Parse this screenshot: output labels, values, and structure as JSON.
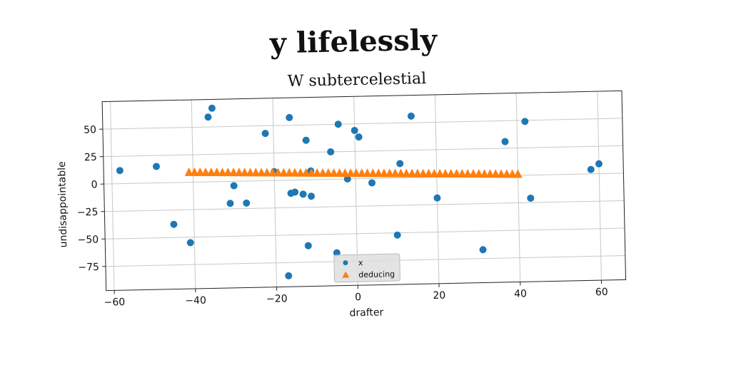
{
  "chart_data": {
    "type": "scatter",
    "suptitle": "y lifelessly",
    "title": "W subtercelestial",
    "xlabel": "drafter",
    "ylabel": "undisappointable",
    "xlim": [
      -62,
      66
    ],
    "ylim": [
      -97,
      75
    ],
    "xticks": [
      -60,
      -40,
      -20,
      0,
      20,
      40,
      60
    ],
    "yticks": [
      -75,
      -50,
      -25,
      0,
      25,
      50
    ],
    "xtick_labels": [
      "−60",
      "−40",
      "−20",
      "0",
      "20",
      "40",
      "60"
    ],
    "ytick_labels": [
      "−75",
      "−50",
      "−25",
      "0",
      "25",
      "50"
    ],
    "grid": true,
    "legend_position": "bottom-center",
    "series": [
      {
        "name": "x",
        "marker": "circle",
        "color": "#1f77b4",
        "points": [
          [
            -58,
            12
          ],
          [
            -49,
            15
          ],
          [
            -45,
            -38
          ],
          [
            -41,
            -55
          ],
          [
            -36,
            59
          ],
          [
            -35,
            67
          ],
          [
            -31,
            -20
          ],
          [
            -30,
            -4
          ],
          [
            -27,
            -20
          ],
          [
            -22,
            43
          ],
          [
            -20,
            8
          ],
          [
            -17,
            -87
          ],
          [
            -16,
            57
          ],
          [
            -16,
            -12
          ],
          [
            -15,
            -11
          ],
          [
            -13,
            -13
          ],
          [
            -12,
            -60
          ],
          [
            -12,
            36
          ],
          [
            -11,
            -15
          ],
          [
            -11,
            8
          ],
          [
            -6,
            25
          ],
          [
            -5,
            -67
          ],
          [
            -4,
            50
          ],
          [
            -2,
            0
          ],
          [
            0,
            44
          ],
          [
            1,
            38
          ],
          [
            4,
            -4
          ],
          [
            10,
            -52
          ],
          [
            11,
            13
          ],
          [
            14,
            56
          ],
          [
            20,
            -19
          ],
          [
            31,
            -67
          ],
          [
            37,
            31
          ],
          [
            42,
            49
          ],
          [
            43,
            -21
          ],
          [
            58,
            4
          ],
          [
            60,
            9
          ]
        ]
      },
      {
        "name": "deducing",
        "marker": "triangle",
        "color": "#ff7f0e",
        "line_from": [
          -41,
          9
        ],
        "line_to": [
          40,
          1
        ],
        "count": 60
      }
    ]
  }
}
